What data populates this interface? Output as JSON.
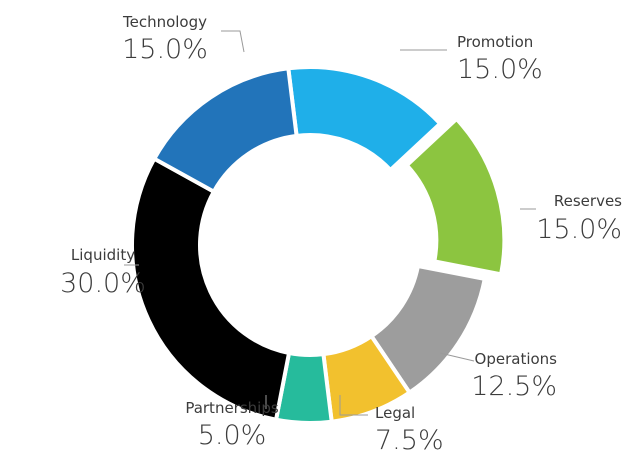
{
  "chart_data": {
    "type": "pie",
    "style": "donut",
    "start_angle_deg": -7,
    "direction": "clockwise",
    "exploded": [
      "Reserves"
    ],
    "slices": [
      {
        "name": "Promotion",
        "value": 15.0,
        "label": "15.0%",
        "color": "#1fafe9"
      },
      {
        "name": "Reserves",
        "value": 15.0,
        "label": "15.0%",
        "color": "#8cc540"
      },
      {
        "name": "Operations",
        "value": 12.5,
        "label": "12.5%",
        "color": "#9d9d9d"
      },
      {
        "name": "Legal",
        "value": 7.5,
        "label": "7.5%",
        "color": "#f2c12e"
      },
      {
        "name": "Partnerships",
        "value": 5.0,
        "label": "5.0%",
        "color": "#26bb9c"
      },
      {
        "name": "Liquidity",
        "value": 30.0,
        "label": "30.0%",
        "color": "#000000"
      },
      {
        "name": "Technology",
        "value": 15.0,
        "label": "15.0%",
        "color": "#2274ba"
      }
    ]
  }
}
